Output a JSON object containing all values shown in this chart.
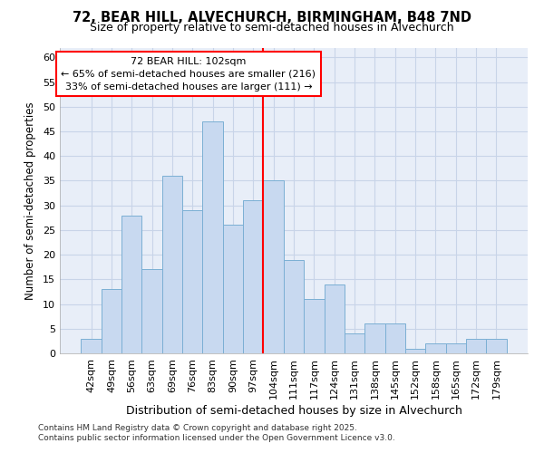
{
  "title1": "72, BEAR HILL, ALVECHURCH, BIRMINGHAM, B48 7ND",
  "title2": "Size of property relative to semi-detached houses in Alvechurch",
  "xlabel": "Distribution of semi-detached houses by size in Alvechurch",
  "ylabel": "Number of semi-detached properties",
  "categories": [
    "42sqm",
    "49sqm",
    "56sqm",
    "63sqm",
    "69sqm",
    "76sqm",
    "83sqm",
    "90sqm",
    "97sqm",
    "104sqm",
    "111sqm",
    "117sqm",
    "124sqm",
    "131sqm",
    "138sqm",
    "145sqm",
    "152sqm",
    "158sqm",
    "165sqm",
    "172sqm",
    "179sqm"
  ],
  "values": [
    3,
    13,
    28,
    17,
    36,
    29,
    47,
    26,
    31,
    35,
    19,
    11,
    14,
    4,
    6,
    6,
    1,
    2,
    2,
    3,
    3
  ],
  "bar_color": "#c8d9f0",
  "bar_edge_color": "#7bafd4",
  "grid_color": "#c8d4e8",
  "background_color": "#e8eef8",
  "vline_label": "72 BEAR HILL: 102sqm",
  "annotation_line1": "← 65% of semi-detached houses are smaller (216)",
  "annotation_line2": "33% of semi-detached houses are larger (111) →",
  "ylim": [
    0,
    62
  ],
  "yticks": [
    0,
    5,
    10,
    15,
    20,
    25,
    30,
    35,
    40,
    45,
    50,
    55,
    60
  ],
  "footnote1": "Contains HM Land Registry data © Crown copyright and database right 2025.",
  "footnote2": "Contains public sector information licensed under the Open Government Licence v3.0.",
  "title1_fontsize": 10.5,
  "title2_fontsize": 9,
  "xlabel_fontsize": 9,
  "ylabel_fontsize": 8.5,
  "tick_fontsize": 8,
  "annotation_fontsize": 8
}
